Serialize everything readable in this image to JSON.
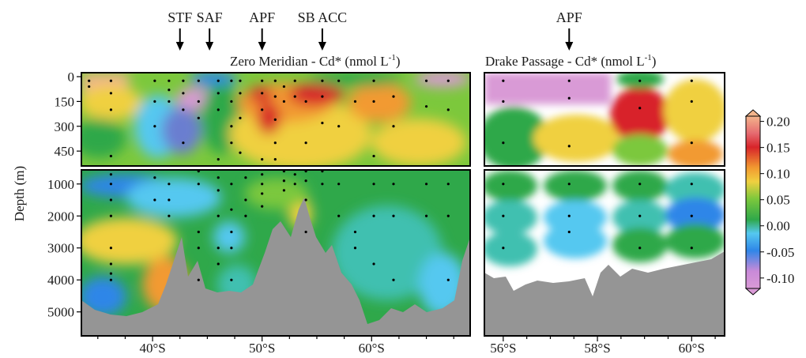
{
  "chart_data": [
    {
      "type": "heatmap",
      "title": "Zero Meridian - Cd* (nmol L",
      "title_sup": "-1",
      "title_end": ")",
      "ylabel": "Depth (m)",
      "x_ticks": [
        "40°S",
        "50°S",
        "60°S"
      ],
      "x_tick_values": [
        40,
        50,
        60
      ],
      "xlim": [
        33.5,
        69
      ],
      "upper_depth_ticks": [
        "0",
        "150",
        "300",
        "450"
      ],
      "upper_depth_values": [
        0,
        150,
        300,
        450
      ],
      "lower_depth_ticks": [
        "1000",
        "2000",
        "3000",
        "4000",
        "5000"
      ],
      "lower_depth_values": [
        1000,
        2000,
        3000,
        4000,
        5000
      ],
      "fronts": [
        {
          "label": "STF",
          "lat": 42.5
        },
        {
          "label": "SAF",
          "lat": 45.2
        },
        {
          "label": "APF",
          "lat": 50.0
        },
        {
          "label": "SB ACC",
          "lat": 55.5
        }
      ]
    },
    {
      "type": "heatmap",
      "title": "Drake Passage - Cd* (nmol L",
      "title_sup": "-1",
      "title_end": ")",
      "x_ticks": [
        "56°S",
        "58°S",
        "60°S"
      ],
      "x_tick_values": [
        56,
        58,
        60
      ],
      "xlim": [
        55.6,
        60.7
      ],
      "fronts": [
        {
          "label": "APF",
          "lat": 57.4
        }
      ]
    }
  ],
  "colorbar": {
    "ticks": [
      "0.20",
      "0.15",
      "0.10",
      "0.05",
      "0.00",
      "-0.05",
      "-0.10"
    ],
    "values": [
      0.2,
      0.15,
      0.1,
      0.05,
      0.0,
      -0.05,
      -0.1
    ],
    "range": [
      -0.12,
      0.21
    ],
    "colors": [
      "#d99ad6",
      "#2f86e8",
      "#55c8f0",
      "#2fa84a",
      "#7cc83c",
      "#f0d040",
      "#f29a30",
      "#d8242a",
      "#f3b58c"
    ]
  }
}
